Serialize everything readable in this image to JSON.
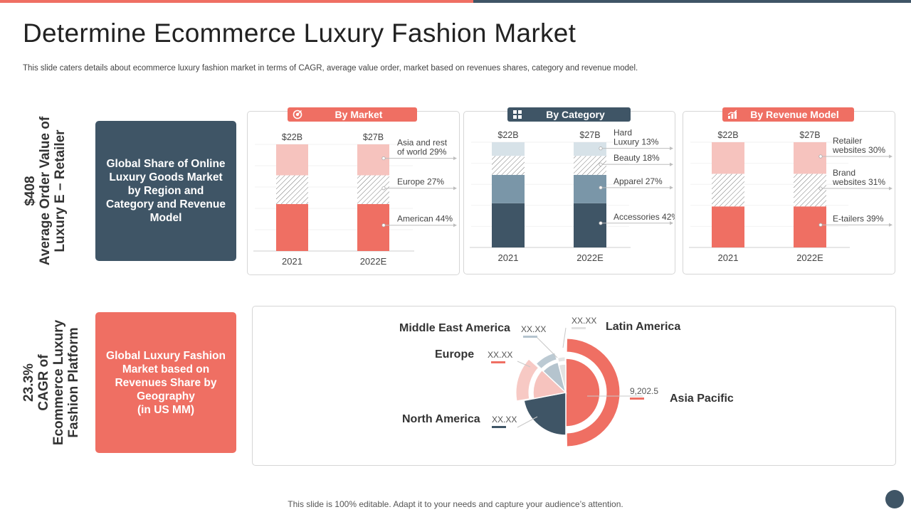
{
  "title": "Determine Ecommerce Luxury Fashion Market",
  "subtitle": "This slide caters details about ecommerce luxury fashion market in terms of CAGR,  average value order, market based on revenues shares, category and revenue model.",
  "left_top": {
    "stat": "$408",
    "label_lines": [
      "Average Order Value of",
      "Luxury E – Retailer"
    ],
    "box_text": "Global Share of Online Luxury Goods Market by Region and Category and Revenue Model"
  },
  "left_bottom": {
    "stat": "23.3%",
    "label_lines": [
      "CAGR of",
      "Ecommerce Luxury",
      "Fashion Platform"
    ],
    "box_text": "Global Luxury Fashion Market based on Revenues Share by Geography\n(in US MM)"
  },
  "footer": "This slide is 100% editable. Adapt it to your needs and capture your audience’s attention.",
  "colors": {
    "accent_red": "#ef6f63",
    "dark_slate": "#3f5566",
    "light_pink": "#f6c3be",
    "blue_gray": "#7a96a8",
    "pale_blue": "#d7e2e8"
  },
  "chart_data": [
    {
      "type": "bar",
      "stacked": true,
      "title": "By Market",
      "icon": "target-icon",
      "categories": [
        "2021",
        "2022E"
      ],
      "totals": [
        "$22B",
        "$27B"
      ],
      "series": [
        {
          "name": "American 44%",
          "share": 44,
          "color": "#ef6f63",
          "pattern": "solid"
        },
        {
          "name": "Europe 27%",
          "share": 27,
          "color": "#9a9a9a",
          "pattern": "hatch"
        },
        {
          "name": "Asia and rest of world 29%",
          "share": 29,
          "color": "#f6c3be",
          "pattern": "solid"
        }
      ]
    },
    {
      "type": "bar",
      "stacked": true,
      "title": "By Category",
      "icon": "grid-icon",
      "categories": [
        "2021",
        "2022E"
      ],
      "totals": [
        "$22B",
        "$27B"
      ],
      "series": [
        {
          "name": "Accessories 42%",
          "share": 42,
          "color": "#3f5566",
          "pattern": "solid"
        },
        {
          "name": "Apparel 27%",
          "share": 27,
          "color": "#7a96a8",
          "pattern": "solid"
        },
        {
          "name": "Beauty 18%",
          "share": 18,
          "color": "#555555",
          "pattern": "hatch"
        },
        {
          "name": "Hard Luxury 13%",
          "share": 13,
          "color": "#d7e2e8",
          "pattern": "solid"
        }
      ]
    },
    {
      "type": "bar",
      "stacked": true,
      "title": "By Revenue Model",
      "icon": "bar-chart-icon",
      "categories": [
        "2021",
        "2022E"
      ],
      "totals": [
        "$22B",
        "$27B"
      ],
      "series": [
        {
          "name": "E-tailers 39%",
          "share": 39,
          "color": "#ef6f63",
          "pattern": "solid"
        },
        {
          "name": "Brand websites 31%",
          "share": 31,
          "color": "#9a9a9a",
          "pattern": "hatch"
        },
        {
          "name": "Retailer websites 30%",
          "share": 30,
          "color": "#f6c3be",
          "pattern": "solid"
        }
      ]
    },
    {
      "type": "pie",
      "title": "",
      "slices": [
        {
          "name": "Asia Pacific",
          "value_label": "9,202.5",
          "share": 50,
          "color": "#ef6f63"
        },
        {
          "name": "North America",
          "value_label": "XX.XX",
          "share": 22,
          "color": "#3f5566"
        },
        {
          "name": "Europe",
          "value_label": "XX.XX",
          "share": 15,
          "color": "#f6c3be"
        },
        {
          "name": "Middle East America",
          "value_label": "XX.XX",
          "share": 9,
          "color": "#b5c4ce"
        },
        {
          "name": "Latin America",
          "value_label": "XX.XX",
          "share": 4,
          "color": "#e2e2e2"
        }
      ]
    }
  ]
}
